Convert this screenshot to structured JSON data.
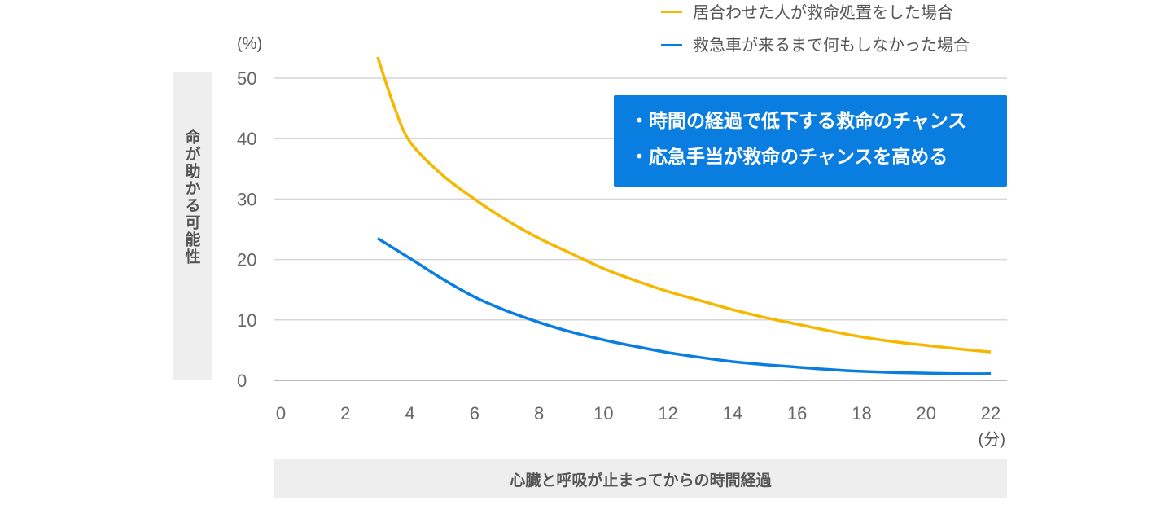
{
  "chart_data": {
    "type": "line",
    "y_unit": "(%)",
    "x_unit": "(分)",
    "ylabel": "命が助かる可能性",
    "xlabel": "心臓と呼吸が止まってからの時間経過",
    "xlim": [
      0,
      22
    ],
    "ylim": [
      0,
      50
    ],
    "x_ticks": [
      "0",
      "2",
      "4",
      "6",
      "8",
      "10",
      "12",
      "14",
      "16",
      "18",
      "20",
      "22"
    ],
    "y_ticks": [
      "0",
      "10",
      "20",
      "30",
      "40",
      "50"
    ],
    "grid": true,
    "legend_position": "top-right",
    "series": [
      {
        "name": "居合わせた人が救命処置をした場合",
        "color": "#f5b800",
        "x": [
          3,
          3.5,
          4,
          5,
          6,
          7,
          8,
          9,
          10,
          11,
          12,
          13,
          14,
          15,
          16,
          17,
          18,
          19,
          20,
          21,
          22
        ],
        "y": [
          53.5,
          45.5,
          39.5,
          34,
          30,
          26.5,
          23.5,
          21,
          18.5,
          16.5,
          14.7,
          13.2,
          11.7,
          10.4,
          9.3,
          8.2,
          7.2,
          6.4,
          5.8,
          5.2,
          4.7
        ]
      },
      {
        "name": "救急車が来るまで何もしなかった場合",
        "color": "#0a7de0",
        "x": [
          3,
          4,
          5,
          6,
          7,
          8,
          9,
          10,
          11,
          12,
          13,
          14,
          15,
          16,
          17,
          18,
          19,
          20,
          21,
          22
        ],
        "y": [
          23.5,
          20.2,
          16.8,
          13.8,
          11.5,
          9.6,
          8.0,
          6.7,
          5.6,
          4.6,
          3.8,
          3.1,
          2.6,
          2.2,
          1.8,
          1.5,
          1.3,
          1.2,
          1.1,
          1.1
        ]
      }
    ],
    "callout": {
      "lines": [
        "・時間の経過で低下する救命のチャンス",
        "・応急手当が救命のチャンスを高める"
      ],
      "background": "#0a7de0"
    }
  }
}
